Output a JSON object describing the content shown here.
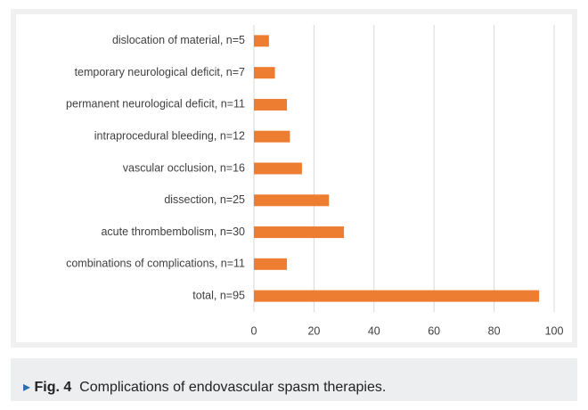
{
  "chart_data": {
    "type": "barh",
    "categories": [
      "dislocation of material, n=5",
      "temporary neurological deficit, n=7",
      "permanent neurological deficit, n=11",
      "intraprocedural bleeding, n=12",
      "vascular occlusion, n=16",
      "dissection, n=25",
      "acute thrombembolism, n=30",
      "combinations of complications, n=11",
      "total, n=95"
    ],
    "values": [
      5,
      7,
      11,
      12,
      16,
      25,
      30,
      11,
      95
    ],
    "color": "#ed7d31",
    "xlim": [
      0,
      100
    ],
    "xticks": [
      0,
      20,
      40,
      60,
      80,
      100
    ],
    "grid": true
  },
  "caption": {
    "label": "Fig. 4",
    "text": "Complications of endovascular spasm therapies."
  }
}
